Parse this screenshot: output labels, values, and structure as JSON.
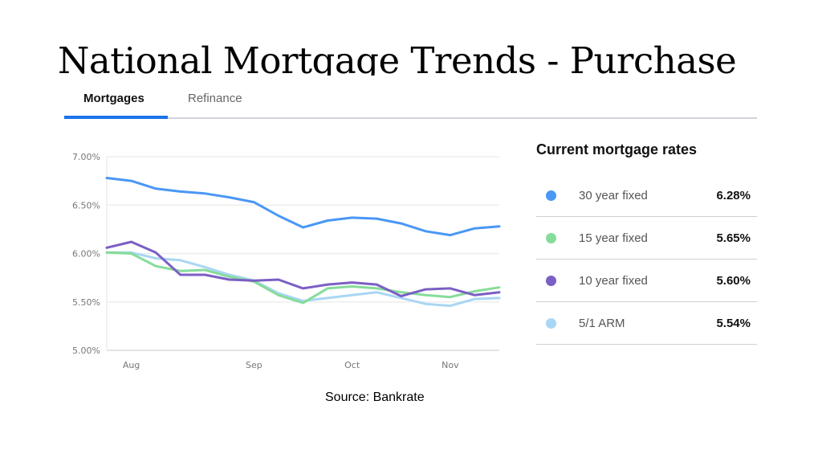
{
  "slide": {
    "title": "National Mortgage Trends - Purchase",
    "source": "Source: Bankrate"
  },
  "tabs": [
    {
      "label": "Mortgages",
      "active": true
    },
    {
      "label": "Refinance",
      "active": false
    }
  ],
  "colors": {
    "accent": "#1a73e8",
    "30_year_fixed": "#4a97f5",
    "15_year_fixed": "#86dc9a",
    "10_year_fixed": "#7b5fc4",
    "5_1_arm": "#a9d6f4"
  },
  "rates_panel": {
    "title": "Current mortgage rates",
    "rows": [
      {
        "label": "30 year fixed",
        "value": "6.28%",
        "color": "#4a97f5"
      },
      {
        "label": "15 year fixed",
        "value": "5.65%",
        "color": "#86dc9a"
      },
      {
        "label": "10 year fixed",
        "value": "5.60%",
        "color": "#7b5fc4"
      },
      {
        "label": "5/1 ARM",
        "value": "5.54%",
        "color": "#a9d6f4"
      }
    ]
  },
  "chart_data": {
    "type": "line",
    "title": "",
    "xlabel": "",
    "ylabel": "",
    "ylim": [
      5.0,
      7.0
    ],
    "yticks": [
      "7.00%",
      "6.50%",
      "6.00%",
      "5.50%",
      "5.00%"
    ],
    "xticks": [
      {
        "label": "Aug",
        "index": 1
      },
      {
        "label": "Sep",
        "index": 6
      },
      {
        "label": "Oct",
        "index": 10
      },
      {
        "label": "Nov",
        "index": 14
      }
    ],
    "grid": true,
    "legend_position": "right panel",
    "x": [
      0,
      1,
      2,
      3,
      4,
      5,
      6,
      7,
      8,
      9,
      10,
      11,
      12,
      13,
      14,
      15,
      16
    ],
    "series": [
      {
        "name": "30 year fixed",
        "color": "#4a97f5",
        "values": [
          6.78,
          6.75,
          6.67,
          6.64,
          6.62,
          6.58,
          6.53,
          6.39,
          6.27,
          6.34,
          6.37,
          6.36,
          6.31,
          6.23,
          6.19,
          6.26,
          6.28
        ]
      },
      {
        "name": "15 year fixed",
        "color": "#86dc9a",
        "values": [
          6.01,
          6.0,
          5.87,
          5.82,
          5.83,
          5.76,
          5.71,
          5.57,
          5.49,
          5.64,
          5.66,
          5.64,
          5.6,
          5.57,
          5.55,
          5.61,
          5.65
        ]
      },
      {
        "name": "10 year fixed",
        "color": "#7b5fc4",
        "values": [
          6.06,
          6.12,
          6.01,
          5.78,
          5.78,
          5.73,
          5.72,
          5.73,
          5.64,
          5.68,
          5.7,
          5.68,
          5.56,
          5.63,
          5.64,
          5.57,
          5.6
        ]
      },
      {
        "name": "5/1 ARM",
        "color": "#a9d6f4",
        "values": [
          6.01,
          6.01,
          5.95,
          5.93,
          5.86,
          5.78,
          5.72,
          5.59,
          5.51,
          5.54,
          5.57,
          5.6,
          5.54,
          5.48,
          5.46,
          5.53,
          5.54
        ]
      }
    ]
  }
}
